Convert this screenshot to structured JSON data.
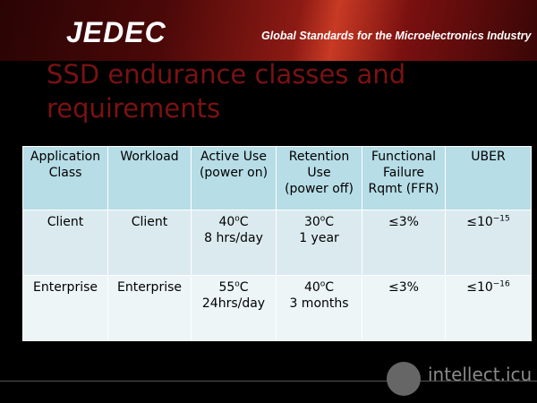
{
  "header": {
    "logo": "JEDEC",
    "tagline": "Global Standards for the Microelectronics Industry"
  },
  "title": "SSD endurance classes and requirements",
  "table": {
    "columns": [
      [
        [
          "Application"
        ],
        [
          "Class"
        ]
      ],
      [
        [
          "Workload"
        ]
      ],
      [
        [
          "Active Use"
        ],
        [
          "(power on)"
        ]
      ],
      [
        [
          "Retention"
        ],
        [
          "Use"
        ],
        [
          "(power off)"
        ]
      ],
      [
        [
          "Functional"
        ],
        [
          "Failure"
        ],
        [
          "Rqmt (FFR)"
        ]
      ],
      [
        [
          "UBER"
        ]
      ]
    ],
    "rows": [
      [
        [
          [
            "Client"
          ]
        ],
        [
          [
            "Client"
          ]
        ],
        [
          [
            "40",
            {
              "sup": "o"
            },
            "C"
          ],
          [
            "8 hrs/day"
          ]
        ],
        [
          [
            "30",
            {
              "sup": "o"
            },
            "C"
          ],
          [
            "1 year"
          ]
        ],
        [
          [
            "≤3%"
          ]
        ],
        [
          [
            "≤10",
            {
              "sup": "−15"
            }
          ]
        ]
      ],
      [
        [
          [
            "Enterprise"
          ]
        ],
        [
          [
            "Enterprise"
          ]
        ],
        [
          [
            "55",
            {
              "sup": "o"
            },
            "C"
          ],
          [
            "24hrs/day"
          ]
        ],
        [
          [
            "40",
            {
              "sup": "o"
            },
            "C"
          ],
          [
            "3 months"
          ]
        ],
        [
          [
            "≤3%"
          ]
        ],
        [
          [
            "≤10",
            {
              "sup": "−16"
            }
          ]
        ]
      ]
    ]
  },
  "watermark": "intellect.icu"
}
